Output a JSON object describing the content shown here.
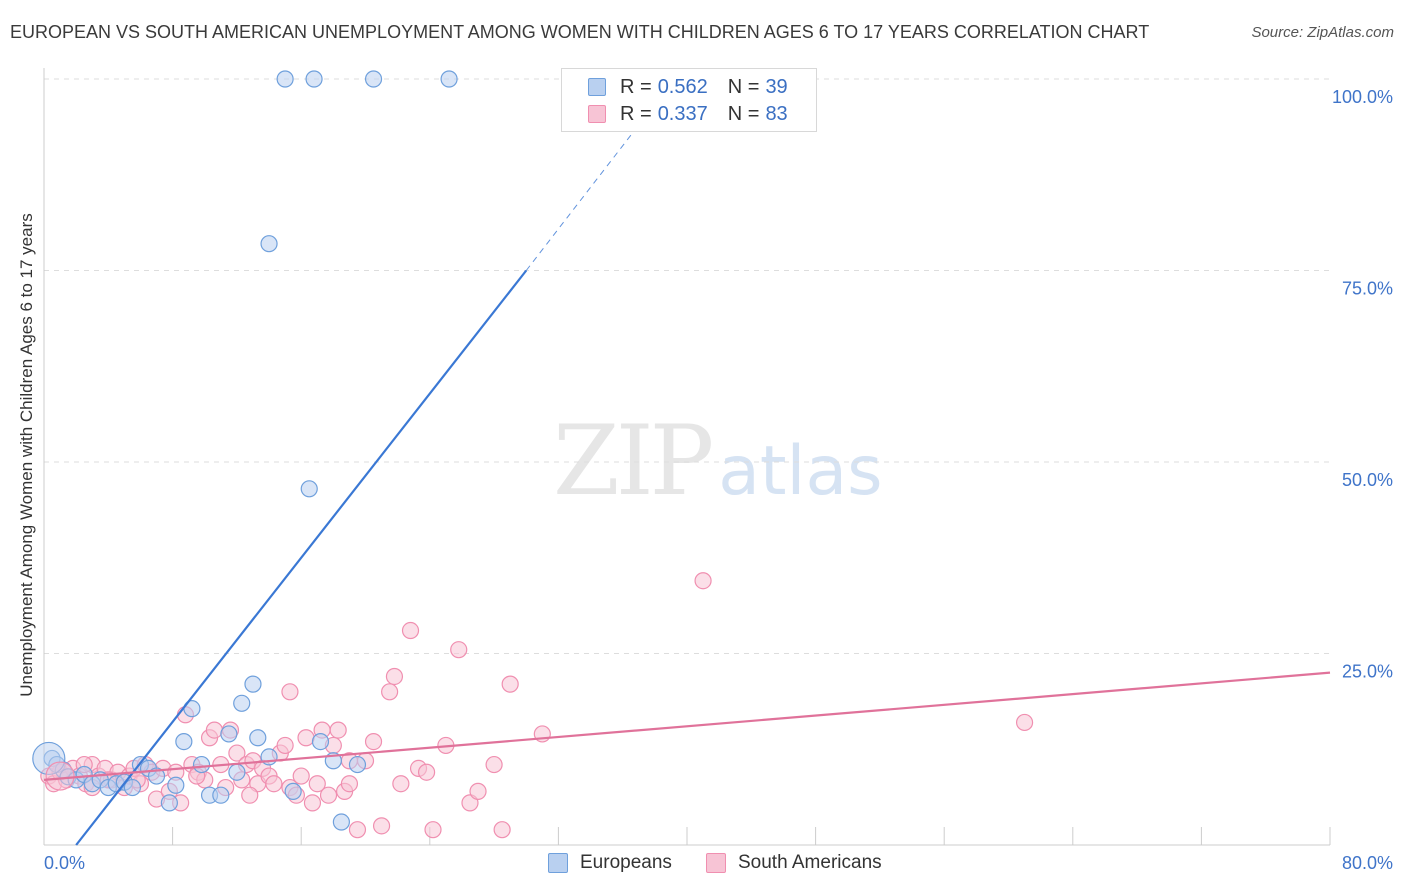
{
  "chart_data": {
    "type": "scatter",
    "title": "EUROPEAN VS SOUTH AMERICAN UNEMPLOYMENT AMONG WOMEN WITH CHILDREN AGES 6 TO 17 YEARS CORRELATION CHART",
    "source": "Source: ZipAtlas.com",
    "ylabel": "Unemployment Among Women with Children Ages 6 to 17 years",
    "xlabel": "",
    "xlim": [
      0,
      80
    ],
    "ylim": [
      0,
      100
    ],
    "x_tick_labels": {
      "min": "0.0%",
      "max": "80.0%"
    },
    "y_ticks": [
      {
        "value": 25,
        "label": "25.0%"
      },
      {
        "value": 50,
        "label": "50.0%"
      },
      {
        "value": 75,
        "label": "75.0%"
      },
      {
        "value": 100,
        "label": "100.0%"
      }
    ],
    "watermark": {
      "zip": "ZIP",
      "atlas": "atlas"
    },
    "legend": [
      {
        "r_label": "R = ",
        "r_value": "0.562",
        "n_label": "N = ",
        "n_value": "39"
      },
      {
        "r_label": "R = ",
        "r_value": "0.337",
        "n_label": "N = ",
        "n_value": "83"
      }
    ],
    "series": [
      {
        "name": "Europeans",
        "color": "#6fa0dc",
        "fill": "#b9d0f0",
        "line_color": "#3a78d4",
        "trend": {
          "x0": 2.0,
          "y0": 0.0,
          "x1": 30.0,
          "y1": 75.0,
          "dash_to": {
            "x": 37,
            "y": 94
          }
        },
        "points": [
          [
            0.5,
            11.3
          ],
          [
            0.8,
            10.5
          ],
          [
            1.2,
            9.8
          ],
          [
            1.5,
            8.9
          ],
          [
            2.0,
            8.5
          ],
          [
            2.5,
            9.2
          ],
          [
            3.0,
            8.0
          ],
          [
            3.5,
            8.5
          ],
          [
            4.0,
            7.5
          ],
          [
            4.5,
            8.0
          ],
          [
            5.0,
            8.2
          ],
          [
            5.5,
            7.5
          ],
          [
            6.0,
            10.5
          ],
          [
            6.5,
            10.0
          ],
          [
            7.0,
            9.0
          ],
          [
            7.8,
            5.5
          ],
          [
            8.2,
            7.8
          ],
          [
            8.7,
            13.5
          ],
          [
            9.2,
            17.8
          ],
          [
            9.8,
            10.5
          ],
          [
            10.3,
            6.5
          ],
          [
            11.0,
            6.5
          ],
          [
            11.5,
            14.5
          ],
          [
            12.0,
            9.5
          ],
          [
            12.3,
            18.5
          ],
          [
            13.0,
            21.0
          ],
          [
            13.3,
            14.0
          ],
          [
            14.0,
            11.5
          ],
          [
            14.0,
            78.5
          ],
          [
            15.5,
            7.0
          ],
          [
            16.5,
            46.5
          ],
          [
            17.2,
            13.5
          ],
          [
            18.0,
            11.0
          ],
          [
            18.5,
            3.0
          ],
          [
            19.5,
            10.5
          ],
          [
            15.0,
            100.0
          ],
          [
            16.8,
            100.0
          ],
          [
            20.5,
            100.0
          ],
          [
            25.2,
            100.0
          ]
        ]
      },
      {
        "name": "South Americans",
        "color": "#f08fb0",
        "fill": "#f7c4d5",
        "line_color": "#e0729a",
        "trend": {
          "x0": 0.0,
          "y0": 8.5,
          "x1": 80.0,
          "y1": 22.5
        },
        "points": [
          [
            0.3,
            9.0
          ],
          [
            0.6,
            8.0
          ],
          [
            1.0,
            9.5
          ],
          [
            1.4,
            8.5
          ],
          [
            1.8,
            10.0
          ],
          [
            2.2,
            9.0
          ],
          [
            2.6,
            8.0
          ],
          [
            3.0,
            10.5
          ],
          [
            3.4,
            9.0
          ],
          [
            3.8,
            10.0
          ],
          [
            4.2,
            8.5
          ],
          [
            4.6,
            9.5
          ],
          [
            5.0,
            7.5
          ],
          [
            5.3,
            9.0
          ],
          [
            5.6,
            10.0
          ],
          [
            6.0,
            8.0
          ],
          [
            6.3,
            10.5
          ],
          [
            6.7,
            9.5
          ],
          [
            7.0,
            6.0
          ],
          [
            7.4,
            10.0
          ],
          [
            7.8,
            7.0
          ],
          [
            8.2,
            9.5
          ],
          [
            8.5,
            5.5
          ],
          [
            8.8,
            17.0
          ],
          [
            9.2,
            10.5
          ],
          [
            9.6,
            9.5
          ],
          [
            10.0,
            8.5
          ],
          [
            10.3,
            14.0
          ],
          [
            10.6,
            15.0
          ],
          [
            11.0,
            10.5
          ],
          [
            11.3,
            7.5
          ],
          [
            11.6,
            15.0
          ],
          [
            12.0,
            12.0
          ],
          [
            12.3,
            8.5
          ],
          [
            12.6,
            10.5
          ],
          [
            13.0,
            11.0
          ],
          [
            13.3,
            8.0
          ],
          [
            13.6,
            10.0
          ],
          [
            14.0,
            9.0
          ],
          [
            14.3,
            8.0
          ],
          [
            14.7,
            12.0
          ],
          [
            15.0,
            13.0
          ],
          [
            15.3,
            7.5
          ],
          [
            15.7,
            6.5
          ],
          [
            16.0,
            9.0
          ],
          [
            16.3,
            14.0
          ],
          [
            16.7,
            5.5
          ],
          [
            17.0,
            8.0
          ],
          [
            17.3,
            15.0
          ],
          [
            17.7,
            6.5
          ],
          [
            18.0,
            13.0
          ],
          [
            18.3,
            15.0
          ],
          [
            18.7,
            7.0
          ],
          [
            19.0,
            11.0
          ],
          [
            19.5,
            2.0
          ],
          [
            20.0,
            11.0
          ],
          [
            20.5,
            13.5
          ],
          [
            21.0,
            2.5
          ],
          [
            21.5,
            20.0
          ],
          [
            21.8,
            22.0
          ],
          [
            22.2,
            8.0
          ],
          [
            22.8,
            28.0
          ],
          [
            23.3,
            10.0
          ],
          [
            23.8,
            9.5
          ],
          [
            24.2,
            2.0
          ],
          [
            25.0,
            13.0
          ],
          [
            25.8,
            25.5
          ],
          [
            26.5,
            5.5
          ],
          [
            27.0,
            7.0
          ],
          [
            28.0,
            10.5
          ],
          [
            28.5,
            2.0
          ],
          [
            29.0,
            21.0
          ],
          [
            31.0,
            14.5
          ],
          [
            41.0,
            34.5
          ],
          [
            61.0,
            16.0
          ],
          [
            15.3,
            20.0
          ],
          [
            19.0,
            8.0
          ],
          [
            2.5,
            10.5
          ],
          [
            4.0,
            8.5
          ],
          [
            3.0,
            7.5
          ],
          [
            5.8,
            8.5
          ],
          [
            9.5,
            9.0
          ],
          [
            12.8,
            6.5
          ]
        ]
      }
    ]
  }
}
